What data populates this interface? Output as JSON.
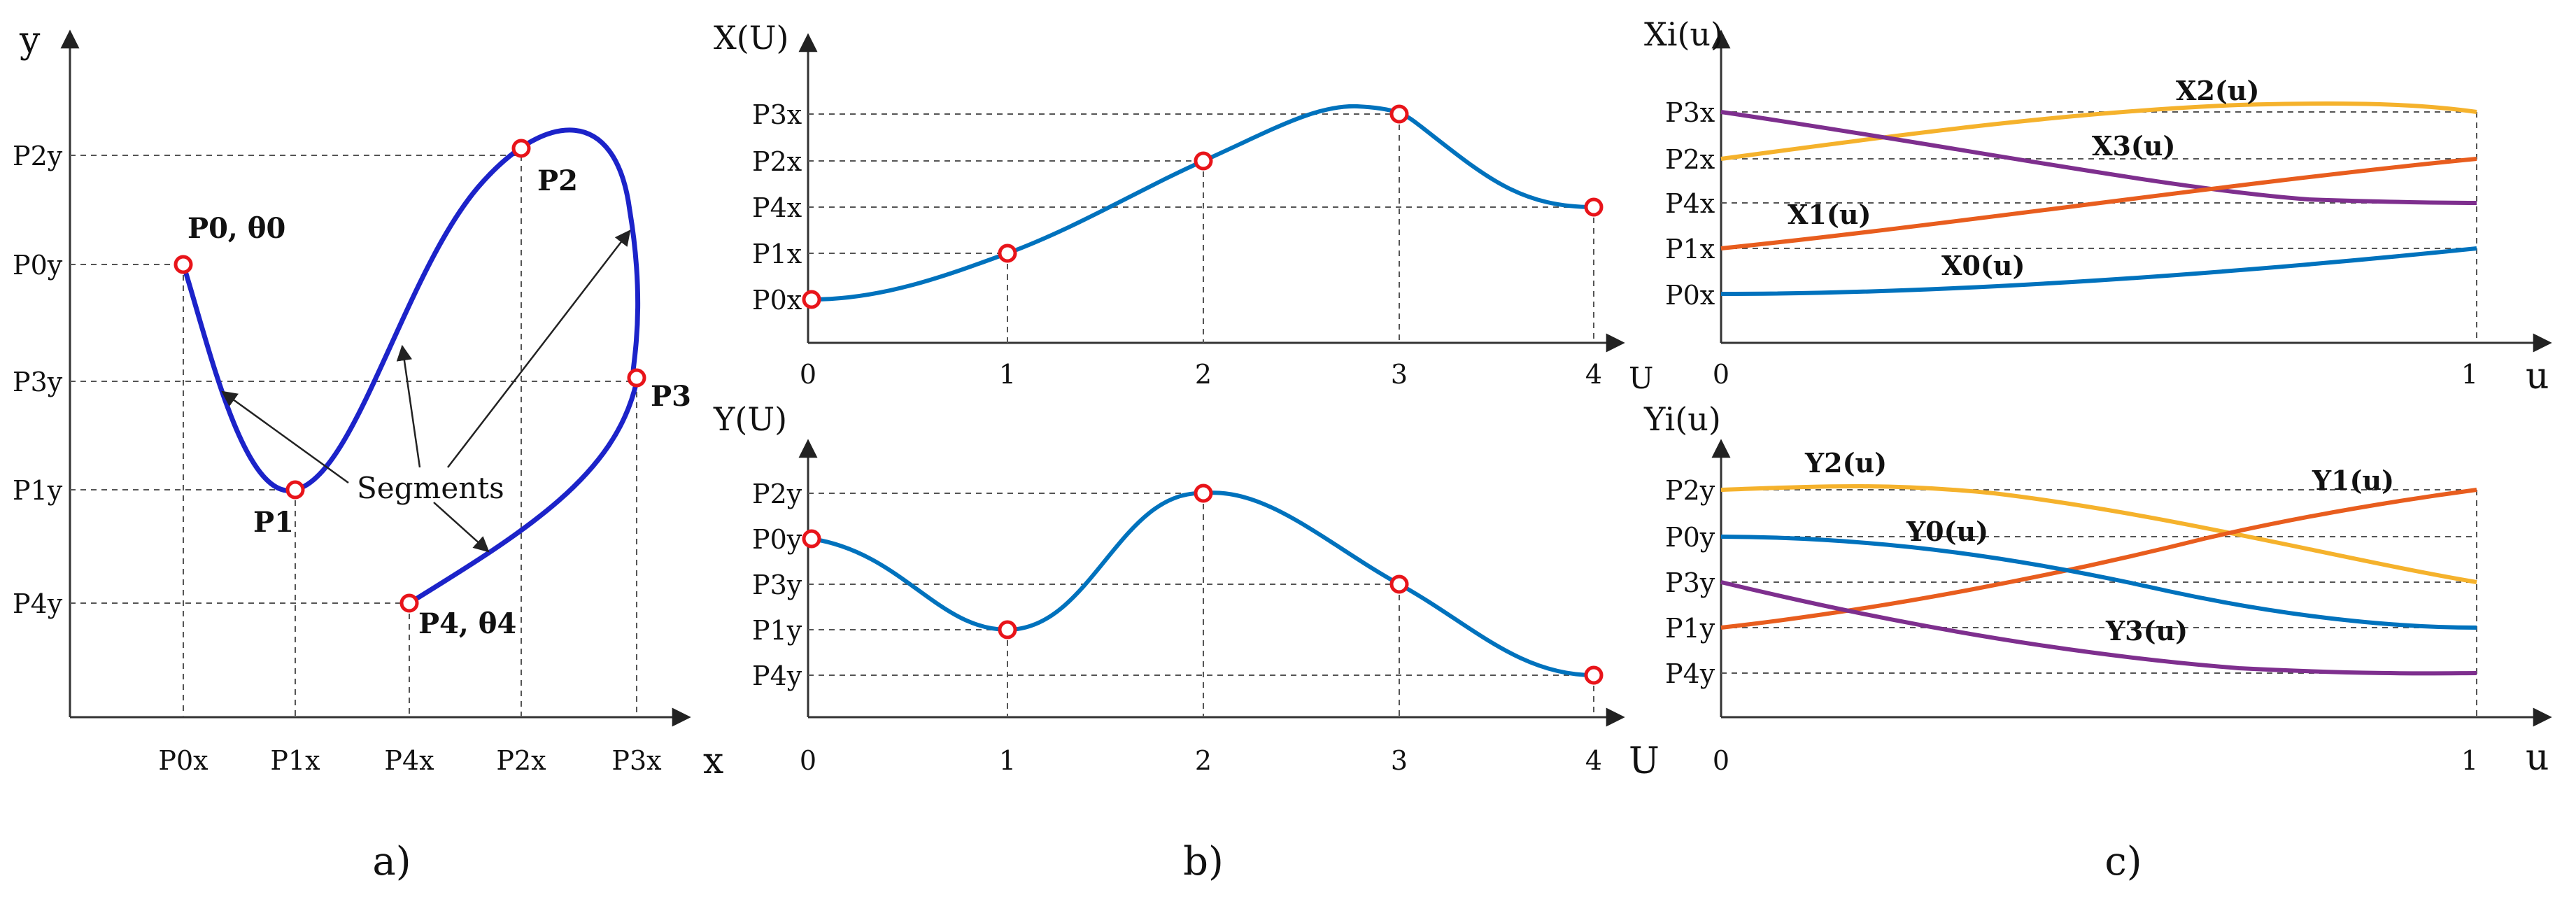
{
  "colors": {
    "path": "#1c23c9",
    "blue": "#0072bd",
    "orange": "#e85d1e",
    "yellow": "#f5b22c",
    "purple": "#7e2f8e",
    "marker": "#e8141a"
  },
  "panel_a": {
    "axis_x": "x",
    "axis_y": "y",
    "xticks": [
      "P0x",
      "P1x",
      "P4x",
      "P2x",
      "P3x"
    ],
    "yticks": [
      "P2y",
      "P0y",
      "P3y",
      "P1y",
      "P4y"
    ],
    "points": {
      "p0": "P0, θ0",
      "p1": "P1",
      "p2": "P2",
      "p3": "P3",
      "p4": "P4, θ4"
    },
    "segments_label": "Segments",
    "caption": "a)"
  },
  "panel_b": {
    "top": {
      "title": "X(U)",
      "axis": "U",
      "xticks": [
        "0",
        "1",
        "2",
        "3",
        "4"
      ],
      "yticks": [
        "P3x",
        "P2x",
        "P4x",
        "P1x",
        "P0x"
      ]
    },
    "bottom": {
      "title": "Y(U)",
      "axis": "U",
      "xticks": [
        "0",
        "1",
        "2",
        "3",
        "4"
      ],
      "yticks": [
        "P2y",
        "P0y",
        "P3y",
        "P1y",
        "P4y"
      ]
    },
    "caption": "b)"
  },
  "panel_c": {
    "top": {
      "title": "Xi(u)",
      "axis": "u",
      "xticks": [
        "0",
        "1"
      ],
      "yticks": [
        "P3x",
        "P2x",
        "P4x",
        "P1x",
        "P0x"
      ],
      "curves": [
        "X2(u)",
        "X3(u)",
        "X1(u)",
        "X0(u)"
      ]
    },
    "bottom": {
      "title": "Yi(u)",
      "axis": "u",
      "xticks": [
        "0",
        "1"
      ],
      "yticks": [
        "P2y",
        "P0y",
        "P3y",
        "P1y",
        "P4y"
      ],
      "curves": [
        "Y2(u)",
        "Y1(u)",
        "Y0(u)",
        "Y3(u)"
      ]
    },
    "caption": "c)"
  }
}
